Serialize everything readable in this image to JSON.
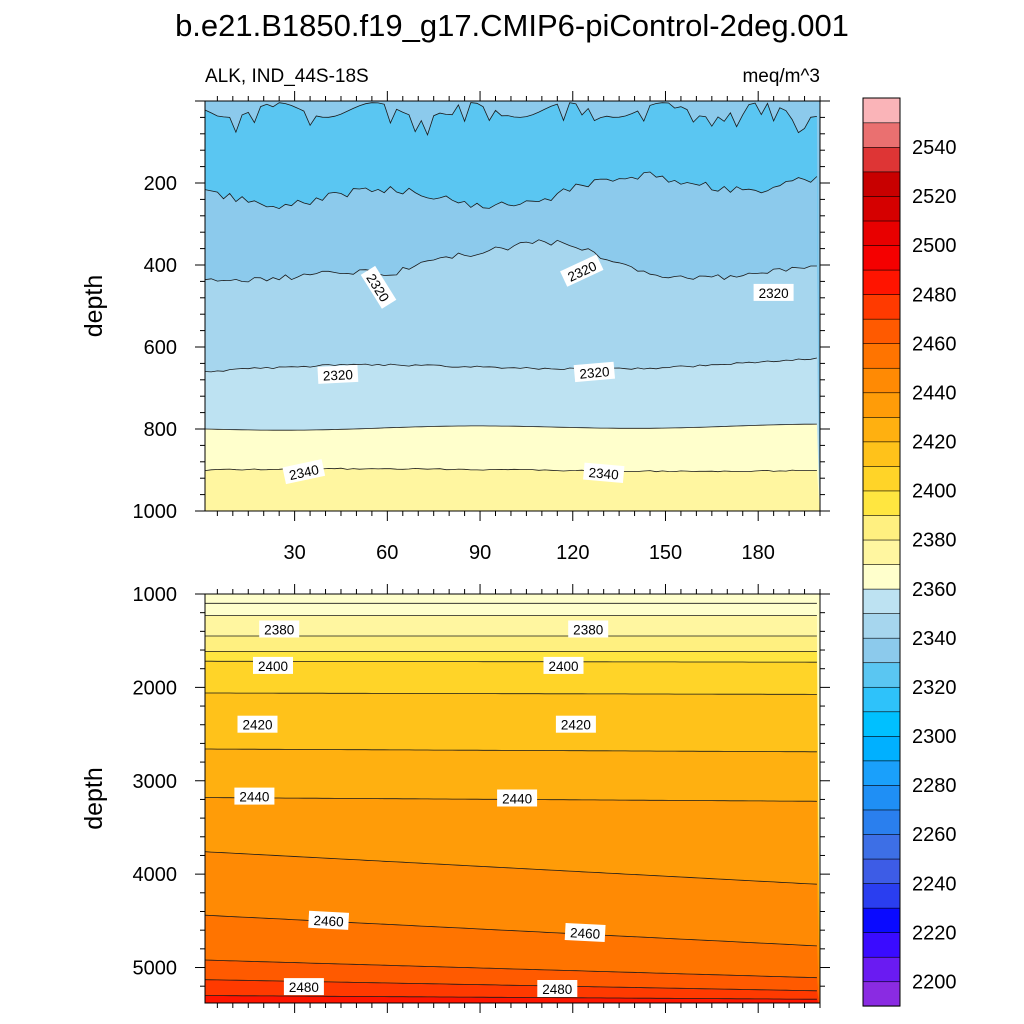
{
  "chart_data": {
    "type": "contour",
    "title": "b.e21.B1850.f19_g17.CMIP6-piControl-2deg.001",
    "variable_label": "ALK, IND_44S-18S",
    "units_label": "meq/m^3",
    "x_range": [
      1,
      200
    ],
    "x_ticks": [
      30,
      60,
      90,
      120,
      150,
      180
    ],
    "x_tick_labels": [
      "30",
      "60",
      "90",
      "120",
      "150",
      "180"
    ],
    "panels": [
      {
        "name": "upper",
        "ylabel": "depth",
        "ylim": [
          1000,
          0
        ],
        "y_ticks": [
          200,
          400,
          600,
          800,
          1000
        ],
        "y_tick_labels": [
          "200",
          "400",
          "600",
          "800",
          "1000"
        ],
        "contour_labels": [
          {
            "text": "2320",
            "x": 57,
            "y": 455,
            "angle": 58
          },
          {
            "text": "2320",
            "x": 123,
            "y": 415,
            "angle": -25
          },
          {
            "text": "2320",
            "x": 185,
            "y": 468,
            "angle": 0
          },
          {
            "text": "2320",
            "x": 44,
            "y": 668,
            "angle": -3
          },
          {
            "text": "2320",
            "x": 127,
            "y": 662,
            "angle": -5
          },
          {
            "text": "2340",
            "x": 33,
            "y": 905,
            "angle": -12
          },
          {
            "text": "2340",
            "x": 130,
            "y": 908,
            "angle": 5
          }
        ]
      },
      {
        "name": "lower",
        "ylabel": "depth",
        "ylim": [
          5380,
          1000
        ],
        "y_ticks": [
          1000,
          2000,
          3000,
          4000,
          5000
        ],
        "y_tick_labels": [
          "1000",
          "2000",
          "3000",
          "4000",
          "5000"
        ],
        "contour_labels": [
          {
            "text": "2380",
            "x": 25,
            "y": 1380,
            "angle": 0
          },
          {
            "text": "2380",
            "x": 125,
            "y": 1380,
            "angle": 0
          },
          {
            "text": "2400",
            "x": 23,
            "y": 1770,
            "angle": 0
          },
          {
            "text": "2400",
            "x": 117,
            "y": 1770,
            "angle": 0
          },
          {
            "text": "2420",
            "x": 18,
            "y": 2400,
            "angle": 0
          },
          {
            "text": "2420",
            "x": 121,
            "y": 2400,
            "angle": 0
          },
          {
            "text": "2440",
            "x": 17,
            "y": 3170,
            "angle": 0
          },
          {
            "text": "2440",
            "x": 102,
            "y": 3190,
            "angle": 0
          },
          {
            "text": "2460",
            "x": 41,
            "y": 4500,
            "angle": 3
          },
          {
            "text": "2460",
            "x": 124,
            "y": 4630,
            "angle": 3
          },
          {
            "text": "2480",
            "x": 33,
            "y": 5210,
            "angle": 0
          },
          {
            "text": "2480",
            "x": 115,
            "y": 5230,
            "angle": 0
          }
        ]
      }
    ],
    "colorbar": {
      "min": 2190,
      "max": 2560,
      "step": 10,
      "labels": [
        "2200",
        "2220",
        "2240",
        "2260",
        "2280",
        "2300",
        "2320",
        "2340",
        "2360",
        "2380",
        "2400",
        "2420",
        "2440",
        "2460",
        "2480",
        "2500",
        "2520",
        "2540"
      ],
      "colors": [
        "#8a2be2",
        "#6a1bf2",
        "#3a0bff",
        "#0a0aff",
        "#2a3ef0",
        "#3d5ce6",
        "#3d6fe6",
        "#2a7fee",
        "#1f8ff5",
        "#1aa0fb",
        "#00b0ff",
        "#00c0ff",
        "#2ec2fa",
        "#5ac6f2",
        "#8ccaec",
        "#a6d6ee",
        "#bde2f2",
        "#ffffcc",
        "#fff6a0",
        "#fff080",
        "#ffe640",
        "#ffd428",
        "#ffc21a",
        "#ffb010",
        "#ff9c08",
        "#ff8a04",
        "#ff7400",
        "#ff5a00",
        "#ff3a00",
        "#ff1400",
        "#f50000",
        "#e80000",
        "#d50000",
        "#c80000",
        "#de3535",
        "#ea7070",
        "#fab4b8"
      ]
    }
  }
}
